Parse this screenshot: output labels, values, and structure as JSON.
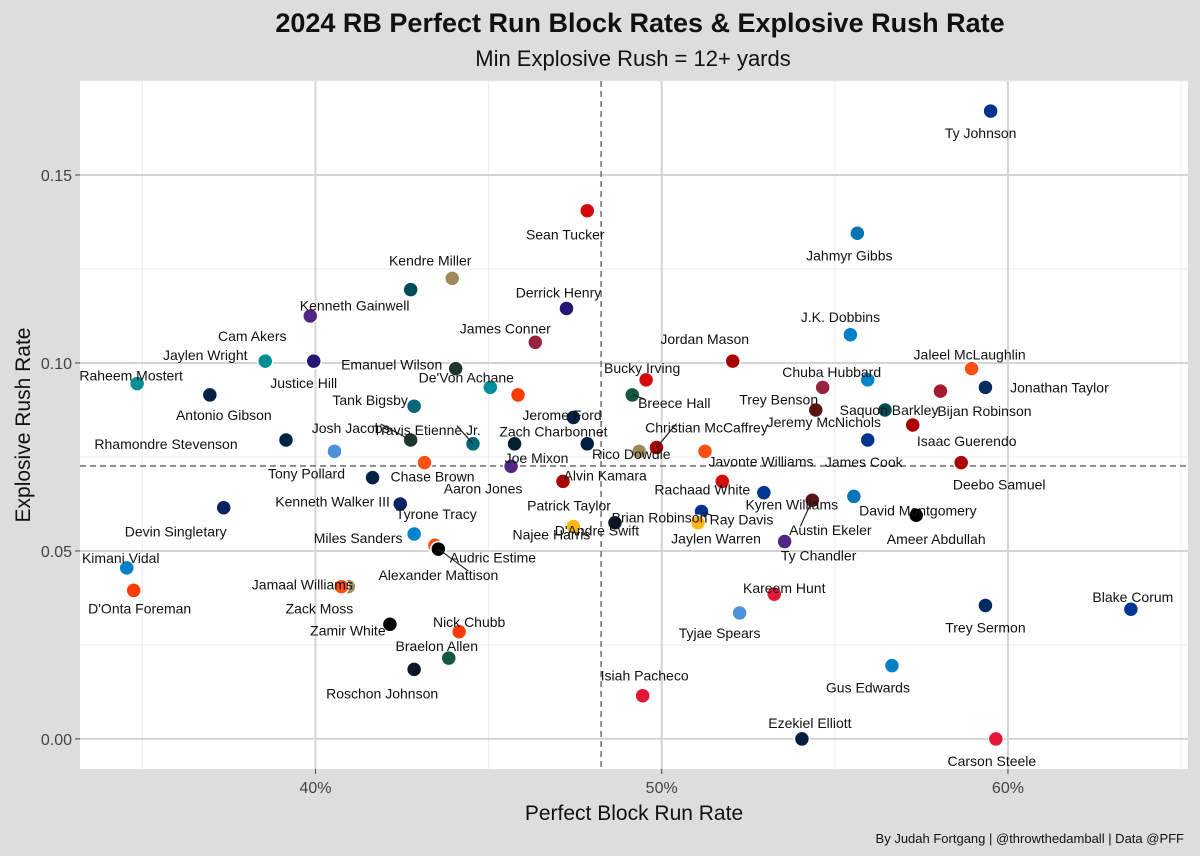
{
  "chart_data": {
    "type": "scatter",
    "title": "2024 RB Perfect Run Block Rates & Explosive Rush Rate",
    "subtitle": "Min Explosive Rush = 12+ yards",
    "xlabel": "Perfect Block Run Rate",
    "ylabel": "Explosive Rush Rate",
    "caption": "By Judah Fortgang | @throwthedamball | Data @PFF",
    "xlim": [
      0.332,
      0.652
    ],
    "ylim": [
      -0.008,
      0.175
    ],
    "x_ticks": [
      {
        "value": 0.4,
        "label": "40%"
      },
      {
        "value": 0.5,
        "label": "50%"
      },
      {
        "value": 0.6,
        "label": "60%"
      }
    ],
    "y_ticks": [
      {
        "value": 0.0,
        "label": "0.00"
      },
      {
        "value": 0.05,
        "label": "0.05"
      },
      {
        "value": 0.1,
        "label": "0.10"
      },
      {
        "value": 0.15,
        "label": "0.15"
      }
    ],
    "reference_lines": {
      "x": 0.4825,
      "y": 0.0726
    },
    "grid": true,
    "legend": "none",
    "points": [
      {
        "name": "Ty Johnson",
        "x": 0.595,
        "y": 0.167,
        "team": "BUF",
        "color": "#00338D"
      },
      {
        "name": "Sean Tucker",
        "x": 0.4785,
        "y": 0.1405,
        "team": "TB",
        "color": "#D50A0A"
      },
      {
        "name": "Jahmyr Gibbs",
        "x": 0.5565,
        "y": 0.1345,
        "team": "DET",
        "color": "#0076B6"
      },
      {
        "name": "Kendre Miller",
        "x": 0.4395,
        "y": 0.1225,
        "team": "NO",
        "color": "#9F8958"
      },
      {
        "name": "Kenneth Gainwell",
        "x": 0.4275,
        "y": 0.1195,
        "team": "PHI",
        "color": "#004C54"
      },
      {
        "name": "Derrick Henry",
        "x": 0.4725,
        "y": 0.1145,
        "team": "BAL",
        "color": "#241773"
      },
      {
        "name": "Cam Akers",
        "x": 0.3985,
        "y": 0.1125,
        "team": "MIN",
        "color": "#4F2683"
      },
      {
        "name": "J.K. Dobbins",
        "x": 0.5545,
        "y": 0.1075,
        "team": "LAC",
        "color": "#0080C6"
      },
      {
        "name": "James Conner",
        "x": 0.4635,
        "y": 0.1055,
        "team": "ARI",
        "color": "#97233F"
      },
      {
        "name": "Jordan Mason",
        "x": 0.5205,
        "y": 0.1005,
        "team": "SF",
        "color": "#AA0000"
      },
      {
        "name": "Jaylen Wright",
        "x": 0.3855,
        "y": 0.1005,
        "team": "MIA",
        "color": "#008E97"
      },
      {
        "name": "Justice Hill",
        "x": 0.3995,
        "y": 0.1005,
        "team": "BAL",
        "color": "#241773"
      },
      {
        "name": "Emanuel Wilson",
        "x": 0.4405,
        "y": 0.0985,
        "team": "GB",
        "color": "#203731"
      },
      {
        "name": "Jaleel McLaughlin",
        "x": 0.5895,
        "y": 0.0985,
        "team": "DEN",
        "color": "#FB4F14"
      },
      {
        "name": "Raheem Mostert",
        "x": 0.3485,
        "y": 0.0945,
        "team": "MIA",
        "color": "#008E97"
      },
      {
        "name": "Bucky Irving",
        "x": 0.4955,
        "y": 0.0955,
        "team": "TB",
        "color": "#D50A0A"
      },
      {
        "name": "Chuba Hubbard",
        "x": 0.5595,
        "y": 0.0955,
        "team": "CAR",
        "color": "#0085CA"
      },
      {
        "name": "Jonathan Taylor",
        "x": 0.5935,
        "y": 0.0935,
        "team": "IND",
        "color": "#002C5F"
      },
      {
        "name": "Trey Benson",
        "x": 0.5465,
        "y": 0.0935,
        "team": "ARI",
        "color": "#97233F"
      },
      {
        "name": "De'Von Achane",
        "x": 0.4505,
        "y": 0.0935,
        "team": "MIA",
        "color": "#008E97"
      },
      {
        "name": "Bijan Robinson",
        "x": 0.5805,
        "y": 0.0925,
        "team": "ATL",
        "color": "#A71930"
      },
      {
        "name": "Jerome Ford",
        "x": 0.4585,
        "y": 0.0915,
        "team": "CLE",
        "color": "#FF3C00"
      },
      {
        "name": "Breece Hall",
        "x": 0.4915,
        "y": 0.0915,
        "team": "NYJ",
        "color": "#125740"
      },
      {
        "name": "Antonio Gibson",
        "x": 0.3695,
        "y": 0.0915,
        "team": "NE",
        "color": "#002244"
      },
      {
        "name": "Tank Bigsby",
        "x": 0.4285,
        "y": 0.0885,
        "team": "JAX",
        "color": "#006778"
      },
      {
        "name": "Saquon Barkley",
        "x": 0.5645,
        "y": 0.0875,
        "team": "PHI",
        "color": "#004C54"
      },
      {
        "name": "Zach Charbonnet",
        "x": 0.4745,
        "y": 0.0855,
        "team": "SEA",
        "color": "#002244"
      },
      {
        "name": "Jeremy McNichols",
        "x": 0.5445,
        "y": 0.0875,
        "team": "WAS",
        "color": "#5A1414"
      },
      {
        "name": "Isaac Guerendo",
        "x": 0.5725,
        "y": 0.0835,
        "team": "SF",
        "color": "#AA0000"
      },
      {
        "name": "Christian McCaffrey",
        "x": 0.4985,
        "y": 0.0775,
        "team": "SF",
        "color": "#AA0000"
      },
      {
        "name": "Josh Jacobs",
        "x": 0.4275,
        "y": 0.0795,
        "team": "GB",
        "color": "#203731"
      },
      {
        "name": "Travis Etienne Jr.",
        "x": 0.4455,
        "y": 0.0785,
        "team": "JAX",
        "color": "#006778"
      },
      {
        "name": "James Cook",
        "x": 0.5595,
        "y": 0.0795,
        "team": "BUF",
        "color": "#00338D"
      },
      {
        "name": "Rhamondre Stevenson",
        "x": 0.3915,
        "y": 0.0795,
        "team": "NE",
        "color": "#002244"
      },
      {
        "name": "Joe Mixon",
        "x": 0.4575,
        "y": 0.0785,
        "team": "HOU",
        "color": "#03202F"
      },
      {
        "name": "Rico Dowdle",
        "x": 0.4785,
        "y": 0.0785,
        "team": "DAL",
        "color": "#041E42"
      },
      {
        "name": "Alvin Kamara",
        "x": 0.4935,
        "y": 0.0765,
        "team": "NO",
        "color": "#9F8958"
      },
      {
        "name": "Tony Pollard",
        "x": 0.4055,
        "y": 0.0765,
        "team": "TEN",
        "color": "#4B92DB"
      },
      {
        "name": "Javonte Williams",
        "x": 0.5125,
        "y": 0.0765,
        "team": "DEN",
        "color": "#FB4F14"
      },
      {
        "name": "Chase Brown",
        "x": 0.4315,
        "y": 0.0735,
        "team": "CIN",
        "color": "#FB4F14"
      },
      {
        "name": "Aaron Jones",
        "x": 0.4565,
        "y": 0.0725,
        "team": "MIN",
        "color": "#4F2683"
      },
      {
        "name": "Deebo Samuel",
        "x": 0.5865,
        "y": 0.0735,
        "team": "SF",
        "color": "#AA0000"
      },
      {
        "name": "Kenneth Walker III",
        "x": 0.4165,
        "y": 0.0695,
        "team": "SEA",
        "color": "#002244"
      },
      {
        "name": "Rachaad White",
        "x": 0.5175,
        "y": 0.0685,
        "team": "TB",
        "color": "#D50A0A"
      },
      {
        "name": "Patrick Taylor",
        "x": 0.4715,
        "y": 0.0685,
        "team": "SF",
        "color": "#AA0000"
      },
      {
        "name": "Kyren Williams",
        "x": 0.5295,
        "y": 0.0655,
        "team": "LA",
        "color": "#003594"
      },
      {
        "name": "Tyrone Tracy",
        "x": 0.4245,
        "y": 0.0625,
        "team": "NYG",
        "color": "#0B2265"
      },
      {
        "name": "Devin Singletary",
        "x": 0.3735,
        "y": 0.0615,
        "team": "NYG",
        "color": "#0B2265"
      },
      {
        "name": "David Montgomery",
        "x": 0.5555,
        "y": 0.0645,
        "team": "DET",
        "color": "#0076B6"
      },
      {
        "name": "Austin Ekeler",
        "x": 0.5435,
        "y": 0.0635,
        "team": "WAS",
        "color": "#5A1414"
      },
      {
        "name": "Brian Robinson",
        "x": 0.5115,
        "y": 0.0605,
        "team": "WAS",
        "color": "#5A1414"
      },
      {
        "name": "Ray Davis",
        "x": 0.5115,
        "y": 0.0605,
        "team": "BUF",
        "color": "#00338D"
      },
      {
        "name": "Ameer Abdullah",
        "x": 0.5735,
        "y": 0.0595,
        "team": "LV",
        "color": "#000000"
      },
      {
        "name": "Najee Harris",
        "x": 0.4745,
        "y": 0.0565,
        "team": "PIT",
        "color": "#FFB612"
      },
      {
        "name": "D'Andre Swift",
        "x": 0.4865,
        "y": 0.0575,
        "team": "CHI",
        "color": "#0B162A"
      },
      {
        "name": "Jaylen Warren",
        "x": 0.5105,
        "y": 0.0575,
        "team": "PIT",
        "color": "#FFB612"
      },
      {
        "name": "Miles Sanders",
        "x": 0.4285,
        "y": 0.0545,
        "team": "CAR",
        "color": "#0085CA"
      },
      {
        "name": "Ty Chandler",
        "x": 0.5355,
        "y": 0.0525,
        "team": "MIN",
        "color": "#4F2683"
      },
      {
        "name": "Audric Estime",
        "x": 0.4345,
        "y": 0.0515,
        "team": "DEN",
        "color": "#FB4F14"
      },
      {
        "name": "Alexander Mattison",
        "x": 0.4355,
        "y": 0.0505,
        "team": "LV",
        "color": "#000000"
      },
      {
        "name": "Kimani Vidal",
        "x": 0.3455,
        "y": 0.0455,
        "team": "LAC",
        "color": "#0080C6"
      },
      {
        "name": "Jamaal Williams",
        "x": 0.4095,
        "y": 0.0405,
        "team": "NO",
        "color": "#9F8958"
      },
      {
        "name": "D'Onta Foreman",
        "x": 0.3475,
        "y": 0.0395,
        "team": "CLE",
        "color": "#FF3C00"
      },
      {
        "name": "Zack Moss",
        "x": 0.4075,
        "y": 0.0405,
        "team": "CIN",
        "color": "#FB4F14"
      },
      {
        "name": "Kareem Hunt",
        "x": 0.5325,
        "y": 0.0385,
        "team": "KC",
        "color": "#E31837"
      },
      {
        "name": "Blake Corum",
        "x": 0.6355,
        "y": 0.0345,
        "team": "LA",
        "color": "#003594"
      },
      {
        "name": "Trey Sermon",
        "x": 0.5935,
        "y": 0.0355,
        "team": "IND",
        "color": "#002C5F"
      },
      {
        "name": "Tyjae Spears",
        "x": 0.5225,
        "y": 0.0335,
        "team": "TEN",
        "color": "#4B92DB"
      },
      {
        "name": "Zamir White",
        "x": 0.4215,
        "y": 0.0305,
        "team": "LV",
        "color": "#000000"
      },
      {
        "name": "Nick Chubb",
        "x": 0.4415,
        "y": 0.0285,
        "team": "CLE",
        "color": "#FF3C00"
      },
      {
        "name": "Braelon Allen",
        "x": 0.4385,
        "y": 0.0215,
        "team": "NYJ",
        "color": "#125740"
      },
      {
        "name": "Gus Edwards",
        "x": 0.5665,
        "y": 0.0195,
        "team": "LAC",
        "color": "#0080C6"
      },
      {
        "name": "Roschon Johnson",
        "x": 0.4285,
        "y": 0.0185,
        "team": "CHI",
        "color": "#0B162A"
      },
      {
        "name": "Isiah Pacheco",
        "x": 0.4945,
        "y": 0.0115,
        "team": "KC",
        "color": "#E31837"
      },
      {
        "name": "Ezekiel Elliott",
        "x": 0.5405,
        "y": 0.0,
        "team": "DAL",
        "color": "#041E42"
      },
      {
        "name": "Carson Steele",
        "x": 0.5965,
        "y": 0.0,
        "team": "KC",
        "color": "#E31837"
      }
    ]
  }
}
